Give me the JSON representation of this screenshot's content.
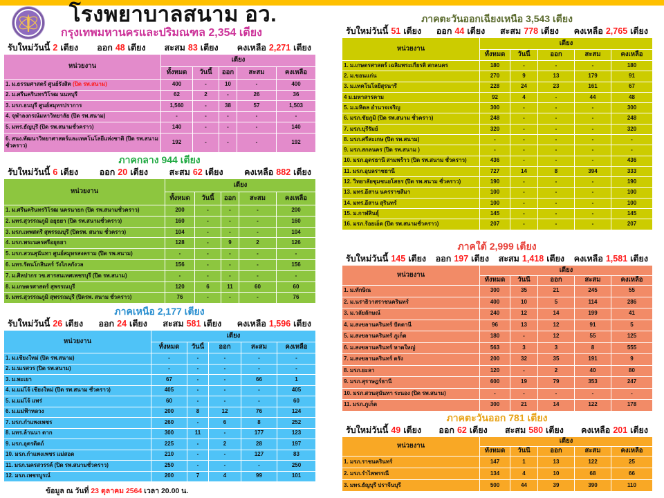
{
  "header": {
    "title": "โรงพยาบาลสนาม อว.",
    "subtitle": "กรุงเทพมหานครและปริมณฑล  2,354 เตียง",
    "logo_icon": "ministry-seal-logo"
  },
  "labels": {
    "new_today": "รับใหม่วันนี้",
    "beds": "เตียง",
    "out": "ออก",
    "cumulative": "สะสม",
    "remaining": "คงเหลือ",
    "unit_col": "หน่วยงาน",
    "bed_group": "เตียง",
    "cols": [
      "ทั้งหมด",
      "วันนี้",
      "ออก",
      "สะสม",
      "คงเหลือ"
    ]
  },
  "regions": [
    {
      "id": "bangkok",
      "title": "",
      "color": "#E38BCB",
      "title_color": "#CC3399",
      "summary": {
        "new": "2",
        "out": "48",
        "cum": "83",
        "remain": "2,271"
      },
      "rows": [
        {
          "name": "1. ม.ธรรมศาสตร์ ศูนย์รังสิต ",
          "note": "(ปิด รพ.สนาม)",
          "values": [
            "400",
            "-",
            "10",
            "-",
            "400"
          ]
        },
        {
          "name": "2. ม.ศรีนครินทรวิโรฒ นนทบุรี",
          "values": [
            "62",
            "2",
            "-",
            "26",
            "36"
          ]
        },
        {
          "name": "3. มรภ.ธนบุรี ศูนย์สมุทรปราการ",
          "values": [
            "1,560",
            "-",
            "38",
            "57",
            "1,503"
          ]
        },
        {
          "name": "4. จุฬาลงกรณ์มหาวิทยาลัย  (ปิด รพ.สนาม)",
          "values": [
            "-",
            "-",
            "-",
            "-",
            "-"
          ]
        },
        {
          "name": "5. มทร.ธัญบุรี (ปิด รพ.สนามชั่วคราว)",
          "values": [
            "140",
            "-",
            "-",
            "-",
            "140"
          ]
        },
        {
          "name": "6. สนง.พัฒนาวิทยาศาสตร์และเทคโนโลยีแห่งชาติ (ปิด รพ.สนาม ชั่วคราว)",
          "values": [
            "192",
            "-",
            "-",
            "-",
            "192"
          ]
        }
      ]
    },
    {
      "id": "central",
      "title": "ภาคกลาง  944 เตียง",
      "color": "#8DC63F",
      "title_color": "#22AA44",
      "summary": {
        "new": "6",
        "out": "20",
        "cum": "62",
        "remain": "882"
      },
      "rows": [
        {
          "name": "1. ม.ศรีนครินทรวิโรฒ นครนายก  (ปิด รพ.สนามชั่วคราว)",
          "values": [
            "200",
            "-",
            "-",
            "-",
            "200"
          ]
        },
        {
          "name": "2. มทร.สุวรรณภูมิ อยุธยา  (ปิด รพ.สนามชั่วคราว)",
          "values": [
            "160",
            "-",
            "-",
            "-",
            "160"
          ]
        },
        {
          "name": "3. มรภ.เทพสตรี สุพรรณบุรี (ปิดรพ. สนาม ชั่วคราว)",
          "values": [
            "104",
            "-",
            "-",
            "-",
            "104"
          ]
        },
        {
          "name": "4. มรภ.พระนครศรีอยุธยา",
          "values": [
            "128",
            "-",
            "9",
            "2",
            "126"
          ]
        },
        {
          "name": "5. มรภ.สวนสุนันทา ศูนย์สมุทรสงคราม  (ปิด รพ.สนาม)",
          "values": [
            "-",
            "-",
            "-",
            "-",
            "-"
          ]
        },
        {
          "name": "6. มทร.รัตนโกสินทร์ วังไกลกังวล",
          "values": [
            "156",
            "-",
            "-",
            "-",
            "156"
          ]
        },
        {
          "name": "7. ม.ศิลปากร วข.สารสนเทศเพชรบุรี  (ปิด รพ.สนาม)",
          "values": [
            "-",
            "-",
            "-",
            "-",
            "-"
          ]
        },
        {
          "name": "8. ม.เกษตรศาสตร์  สุพรรณบุรี",
          "values": [
            "120",
            "6",
            "11",
            "60",
            "60"
          ]
        },
        {
          "name": "9. มทร.สุวรรณภูมิ  สุพรรณบุรี (ปิดรพ. สนาม ชั่วคราว)",
          "values": [
            "76",
            "-",
            "-",
            "-",
            "76"
          ]
        }
      ]
    },
    {
      "id": "north",
      "title": "ภาคเหนือ  2,177 เตียง",
      "color": "#4FC3F7",
      "title_color": "#2A8FD0",
      "summary": {
        "new": "26",
        "out": "24",
        "cum": "581",
        "remain": "1,596"
      },
      "rows": [
        {
          "name": "1. ม.เชียงใหม่  (ปิด รพ.สนาม)",
          "values": [
            "-",
            "-",
            "-",
            "-",
            "-"
          ]
        },
        {
          "name": "2. ม.นเรศวร (ปิด รพ.สนาม)",
          "values": [
            "-",
            "-",
            "-",
            "-",
            "-"
          ]
        },
        {
          "name": "3. ม.พะเยา",
          "values": [
            "67",
            "-",
            "-",
            "66",
            "1"
          ]
        },
        {
          "name": "4. ม.แม่โจ้ เชียงใหม่ (ปิด รพ.สนาม ชั่วคราว)",
          "values": [
            "405",
            "-",
            "-",
            "-",
            "405"
          ]
        },
        {
          "name": "5. ม.แม่โจ้ แพร่",
          "values": [
            "60",
            "-",
            "-",
            "-",
            "60"
          ]
        },
        {
          "name": "6. ม.แม่ฟ้าหลวง",
          "values": [
            "200",
            "8",
            "12",
            "76",
            "124"
          ]
        },
        {
          "name": "7. มรภ.กำแพงเพชร",
          "values": [
            "260",
            "-",
            "6",
            "8",
            "252"
          ]
        },
        {
          "name": "8. มทร.ล้านนา ตาก",
          "values": [
            "300",
            "11",
            "-",
            "177",
            "123"
          ]
        },
        {
          "name": "9. มรภ.อุตรดิตถ์",
          "values": [
            "225",
            "-",
            "2",
            "28",
            "197"
          ]
        },
        {
          "name": "10. มรภ.กำแพงเพชร แม่สอด",
          "values": [
            "210",
            "-",
            "-",
            "127",
            "83"
          ]
        },
        {
          "name": "11. มรภ.นครสวรรค์ (ปิด รพ.สนามชั่วคราว)",
          "values": [
            "250",
            "-",
            "-",
            "-",
            "250"
          ]
        },
        {
          "name": "12. มรภ.เพชรบูรณ์",
          "values": [
            "200",
            "7",
            "4",
            "99",
            "101"
          ]
        }
      ]
    },
    {
      "id": "northeast",
      "title": "ภาคตะวันออกเฉียงเหนือ  3,543 เตียง",
      "color": "#CCCC00",
      "title_color": "#5B6B2E",
      "summary": {
        "new": "51",
        "out": "44",
        "cum": "778",
        "remain": "2,765"
      },
      "rows": [
        {
          "name": "1. ม.เกษตรศาสตร์ เฉลิมพระเกียรติ สกลนคร",
          "values": [
            "180",
            "-",
            "-",
            "-",
            "180"
          ]
        },
        {
          "name": "2. ม.ขอนแก่น",
          "values": [
            "270",
            "9",
            "13",
            "179",
            "91"
          ]
        },
        {
          "name": "3. ม.เทคโนโลยีสุรนารี",
          "values": [
            "228",
            "24",
            "23",
            "161",
            "67"
          ]
        },
        {
          "name": "4 ม.มหาสารคาม",
          "values": [
            "92",
            "4",
            "-",
            "44",
            "48"
          ]
        },
        {
          "name": "5. ม.มหิดล อำนาจเจริญ",
          "values": [
            "300",
            "-",
            "-",
            "-",
            "300"
          ]
        },
        {
          "name": "6. มรภ.ชัยภูมิ   (ปิด รพ.สนาม ชั่วคราว)",
          "values": [
            "248",
            "-",
            "-",
            "-",
            "248"
          ]
        },
        {
          "name": "7. มรภ.บุรีรัมย์",
          "values": [
            "320",
            "-",
            "-",
            "-",
            "320"
          ]
        },
        {
          "name": "8. มรภ.ศรีสะเกษ   (ปิด รพ.สนาม)",
          "values": [
            "-",
            "-",
            "-",
            "-",
            "-"
          ]
        },
        {
          "name": "9. มรภ.สกลนคร  (ปิด รพ.สนาม )",
          "values": [
            "-",
            "-",
            "-",
            "-",
            "-"
          ]
        },
        {
          "name": "10. มรภ.อุดรธานี  สามพร้าว (ปิด รพ.สนาม ชั่วคราว)",
          "values": [
            "436",
            "-",
            "-",
            "-",
            "436"
          ]
        },
        {
          "name": "11. มรภ.อุบลราชธานี",
          "values": [
            "727",
            "14",
            "8",
            "394",
            "333"
          ]
        },
        {
          "name": "12. วิทยาลัยชุมชนยโสธร  (ปิด รพ.สนาม ชั่วคราว)",
          "values": [
            "190",
            "-",
            "-",
            "-",
            "190"
          ]
        },
        {
          "name": "13. มทร.อีสาน  นครราชสีมา",
          "values": [
            "100",
            "-",
            "-",
            "-",
            "100"
          ]
        },
        {
          "name": "14. มทร.อีสาน  สุรินทร์",
          "values": [
            "100",
            "-",
            "-",
            "-",
            "100"
          ]
        },
        {
          "name": "15. ม.กาฬสินธุ์",
          "values": [
            "145",
            "-",
            "-",
            "-",
            "145"
          ]
        },
        {
          "name": "16. มรภ.ร้อยเอ็ด  (ปิด รพ.สนามชั่วคราว)",
          "values": [
            "207",
            "-",
            "-",
            "-",
            "207"
          ]
        }
      ]
    },
    {
      "id": "south",
      "title": "ภาคใต้ 2,999 เตียง",
      "color": "#F28B67",
      "title_color": "#E8423A",
      "summary": {
        "new": "145",
        "out": "197",
        "cum": "1,418",
        "remain": "1,581"
      },
      "rows": [
        {
          "name": "1. ม.ทักษิณ",
          "values": [
            "300",
            "35",
            "21",
            "245",
            "55"
          ]
        },
        {
          "name": "2. ม.นราธิวาสราชนครินทร์",
          "values": [
            "400",
            "10",
            "5",
            "114",
            "286"
          ]
        },
        {
          "name": "3. ม.วลัยลักษณ์",
          "values": [
            "240",
            "12",
            "14",
            "199",
            "41"
          ]
        },
        {
          "name": "4. ม.สงขลานครินทร์ ปัตตานี",
          "values": [
            "96",
            "13",
            "12",
            "91",
            "5"
          ]
        },
        {
          "name": "5. ม.สงขลานครินทร์ ภูเก็ต",
          "values": [
            "180",
            "-",
            "12",
            "55",
            "125"
          ]
        },
        {
          "name": "6. ม.สงขลานครินทร์ หาดใหญ่",
          "values": [
            "563",
            "3",
            "3",
            "8",
            "555"
          ]
        },
        {
          "name": "7. ม.สงขลานครินทร์ ตรัง",
          "values": [
            "200",
            "32",
            "35",
            "191",
            "9"
          ]
        },
        {
          "name": "8. มรภ.ยะลา",
          "values": [
            "120",
            "-",
            "2",
            "40",
            "80"
          ]
        },
        {
          "name": "9. มรภ.สุราษฎร์ธานี",
          "values": [
            "600",
            "19",
            "79",
            "353",
            "247"
          ]
        },
        {
          "name": "10. มรภ.สวนสุนันทา ระนอง (ปิด รพ.สนาม)",
          "values": [
            "-",
            "-",
            "-",
            "-",
            "-"
          ]
        },
        {
          "name": "11. มรภ.ภูเก็ต",
          "values": [
            "300",
            "21",
            "14",
            "122",
            "178"
          ]
        }
      ]
    },
    {
      "id": "east",
      "title": "ภาคตะวันออก 781  เตียง",
      "color": "#F9A825",
      "title_color": "#E8A317",
      "summary": {
        "new": "49",
        "out": "62",
        "cum": "580",
        "remain": "201"
      },
      "rows": [
        {
          "name": "1. มรภ.ราชนครินทร์",
          "values": [
            "147",
            "1",
            "13",
            "122",
            "25"
          ]
        },
        {
          "name": "2. มรภ.รำไพพรรณี",
          "values": [
            "134",
            "4",
            "10",
            "68",
            "66"
          ]
        },
        {
          "name": "3. มทร.ธัญบุรี  ปราจีนบุรี",
          "values": [
            "500",
            "44",
            "39",
            "390",
            "110"
          ]
        }
      ]
    }
  ],
  "footer": {
    "prefix": "ข้อมูล ณ วันที่",
    "date": "23  ตุลาคม  2564",
    "suffix": "เวลา  20.00 น."
  }
}
